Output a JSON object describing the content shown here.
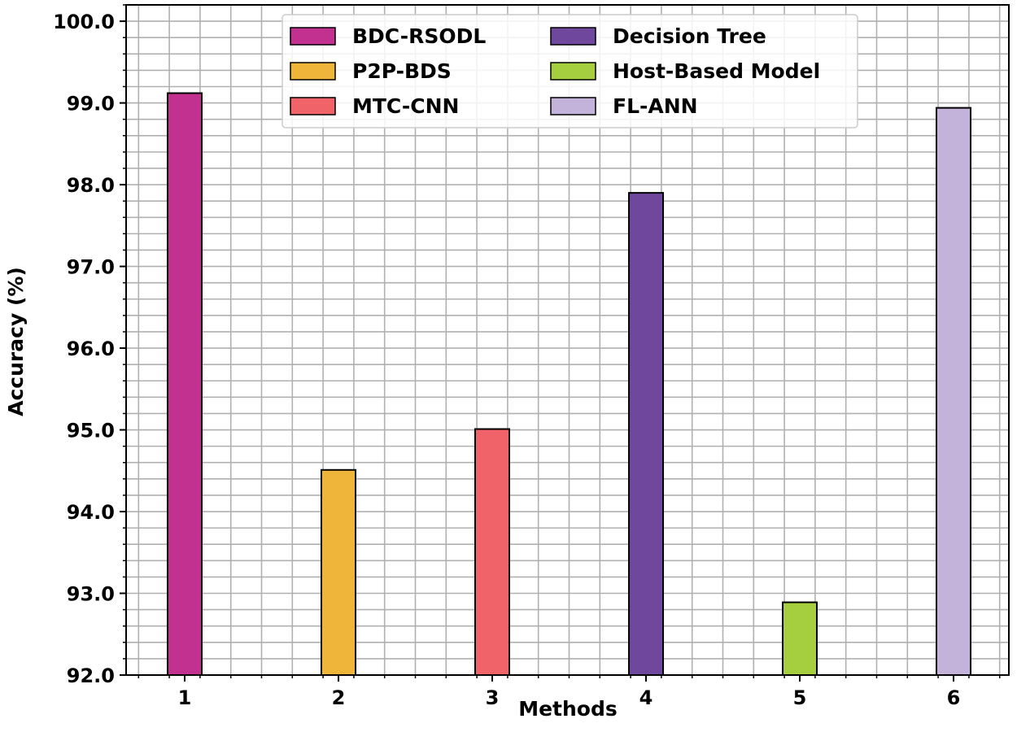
{
  "chart_data": {
    "type": "bar",
    "title": "",
    "xlabel": "Methods",
    "ylabel": "Accuracy (%)",
    "categories": [
      "1",
      "2",
      "3",
      "4",
      "5",
      "6"
    ],
    "series": [
      {
        "name": "BDC-RSODL",
        "color": "#c2318f",
        "values": [
          99.12,
          null,
          null,
          null,
          null,
          null
        ]
      },
      {
        "name": "P2P-BDS",
        "color": "#eeb53a",
        "values": [
          null,
          94.51,
          null,
          null,
          null,
          null
        ]
      },
      {
        "name": "MTC-CNN",
        "color": "#f06369",
        "values": [
          null,
          null,
          95.01,
          null,
          null,
          null
        ]
      },
      {
        "name": "Decision Tree",
        "color": "#6f479d",
        "values": [
          null,
          null,
          null,
          97.9,
          null,
          null
        ]
      },
      {
        "name": "Host-Based Model",
        "color": "#a5cf3f",
        "values": [
          null,
          null,
          null,
          null,
          92.89,
          null
        ]
      },
      {
        "name": "FL-ANN",
        "color": "#c3b3da",
        "values": [
          null,
          null,
          null,
          null,
          null,
          98.94
        ]
      }
    ],
    "ylim": [
      92.0,
      100.2
    ],
    "yticks": [
      "92.0",
      "93.0",
      "94.0",
      "95.0",
      "96.0",
      "97.0",
      "98.0",
      "99.0",
      "100.0"
    ],
    "grid": true,
    "legend_position": "top-center",
    "legend_columns": 2
  }
}
